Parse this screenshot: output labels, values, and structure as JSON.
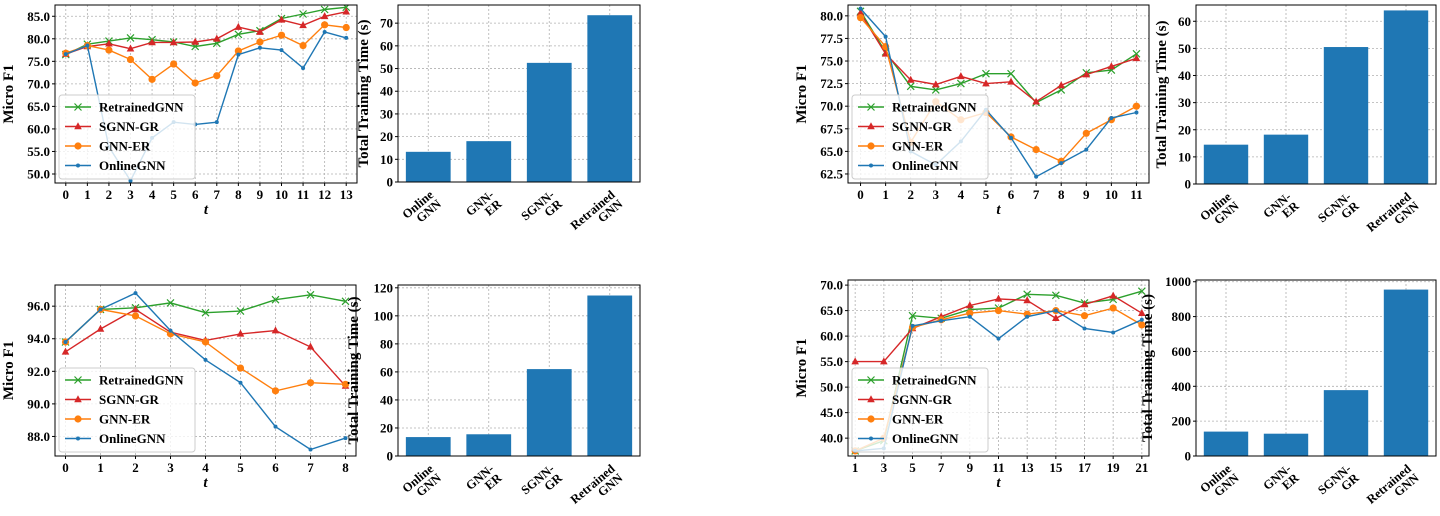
{
  "figure": {
    "legend_location": "lower-left"
  },
  "series_styles": [
    {
      "name": "RetrainedGNN",
      "color": "#2ca02c",
      "marker": "x"
    },
    {
      "name": "SGNN-GR",
      "color": "#d62728",
      "marker": "triangle"
    },
    {
      "name": "GNN-ER",
      "color": "#ff7f0e",
      "marker": "circle"
    },
    {
      "name": "OnlineGNN",
      "color": "#1f77b4",
      "marker": "dot"
    }
  ],
  "bar_color": "#1f77b4",
  "chart_data": [
    {
      "type": "line",
      "id": "panel-a-line",
      "xlabel": "t",
      "ylabel": "Micro F1",
      "xlim": [
        -0.5,
        13.5
      ],
      "ylim": [
        48,
        87.5
      ],
      "xticks": [
        0,
        1,
        2,
        3,
        4,
        5,
        6,
        7,
        8,
        9,
        10,
        11,
        12,
        13
      ],
      "yticks": [
        50.0,
        55.0,
        60.0,
        65.0,
        70.0,
        75.0,
        80.0,
        85.0
      ],
      "ytick_decimals": 1,
      "x": [
        0,
        1,
        2,
        3,
        4,
        5,
        6,
        7,
        8,
        9,
        10,
        11,
        12,
        13
      ],
      "series": [
        {
          "name": "RetrainedGNN",
          "values": [
            76.5,
            78.8,
            79.5,
            80.2,
            79.8,
            79.3,
            78.3,
            79.0,
            81.0,
            81.8,
            84.5,
            85.5,
            86.5,
            87.0
          ]
        },
        {
          "name": "SGNN-GR",
          "values": [
            76.6,
            78.3,
            78.9,
            77.8,
            79.2,
            79.2,
            79.3,
            80.0,
            82.6,
            81.5,
            84.2,
            83.0,
            85.0,
            86.0
          ]
        },
        {
          "name": "GNN-ER",
          "values": [
            76.8,
            78.5,
            77.5,
            75.4,
            71.0,
            74.4,
            70.2,
            71.8,
            77.3,
            79.3,
            80.8,
            78.5,
            83.1,
            82.5
          ]
        },
        {
          "name": "OnlineGNN",
          "values": [
            76.6,
            78.5,
            56.0,
            48.5,
            58.0,
            61.5,
            61.0,
            61.5,
            76.5,
            78.0,
            77.5,
            73.5,
            81.5,
            80.2
          ]
        }
      ]
    },
    {
      "type": "bar",
      "id": "panel-a-bar",
      "ylabel": "Total Training Time (s)",
      "ylim": [
        0,
        78
      ],
      "yticks": [
        0,
        10,
        20,
        30,
        40,
        50,
        60,
        70
      ],
      "categories": [
        [
          "Online",
          "GNN"
        ],
        [
          "GNN-",
          "ER"
        ],
        [
          "SGNN-",
          "GR"
        ],
        [
          "Retrained",
          "GNN"
        ]
      ],
      "values": [
        13.3,
        18.0,
        52.5,
        73.5
      ]
    },
    {
      "type": "line",
      "id": "panel-b-line",
      "xlabel": "t",
      "ylabel": "Micro F1",
      "xlim": [
        -0.5,
        11.5
      ],
      "ylim": [
        61.5,
        81.2
      ],
      "xticks": [
        0,
        1,
        2,
        3,
        4,
        5,
        6,
        7,
        8,
        9,
        10,
        11
      ],
      "yticks": [
        62.5,
        65.0,
        67.5,
        70.0,
        72.5,
        75.0,
        77.5,
        80.0
      ],
      "ytick_decimals": 1,
      "x": [
        0,
        1,
        2,
        3,
        4,
        5,
        6,
        7,
        8,
        9,
        10,
        11
      ],
      "series": [
        {
          "name": "RetrainedGNN",
          "values": [
            80.5,
            76.0,
            72.2,
            71.8,
            72.5,
            73.6,
            73.6,
            70.4,
            71.8,
            73.7,
            74.0,
            75.8
          ]
        },
        {
          "name": "SGNN-GR",
          "values": [
            80.3,
            75.8,
            72.9,
            72.4,
            73.3,
            72.5,
            72.7,
            70.5,
            72.3,
            73.5,
            74.4,
            75.3
          ]
        },
        {
          "name": "GNN-ER",
          "values": [
            79.8,
            76.6,
            66.0,
            70.5,
            68.5,
            69.3,
            66.6,
            65.2,
            63.9,
            67.0,
            68.5,
            70.0
          ]
        },
        {
          "name": "OnlineGNN",
          "values": [
            80.8,
            77.7,
            65.0,
            63.5,
            66.1,
            69.6,
            66.5,
            62.2,
            63.7,
            65.2,
            68.7,
            69.3
          ]
        }
      ]
    },
    {
      "type": "bar",
      "id": "panel-b-bar",
      "ylabel": "Total Training Time (s)",
      "ylim": [
        0,
        66
      ],
      "yticks": [
        0,
        10,
        20,
        30,
        40,
        50,
        60
      ],
      "categories": [
        [
          "Online",
          "GNN"
        ],
        [
          "GNN-",
          "ER"
        ],
        [
          "SGNN-",
          "GR"
        ],
        [
          "Retrained",
          "GNN"
        ]
      ],
      "values": [
        14.5,
        18.2,
        50.5,
        64.0
      ]
    },
    {
      "type": "line",
      "id": "panel-c-line",
      "xlabel": "t",
      "ylabel": "Micro F1",
      "xlim": [
        -0.3,
        8.3
      ],
      "ylim": [
        86.8,
        97.3
      ],
      "xticks": [
        0,
        1,
        2,
        3,
        4,
        5,
        6,
        7,
        8
      ],
      "yticks": [
        88.0,
        90.0,
        92.0,
        94.0,
        96.0
      ],
      "ytick_decimals": 1,
      "x": [
        0,
        1,
        2,
        3,
        4,
        5,
        6,
        7,
        8
      ],
      "series": [
        {
          "name": "RetrainedGNN",
          "values": [
            93.8,
            95.8,
            95.9,
            96.2,
            95.6,
            95.7,
            96.4,
            96.7,
            96.3
          ]
        },
        {
          "name": "SGNN-GR",
          "values": [
            93.2,
            94.6,
            95.8,
            94.4,
            93.9,
            94.3,
            94.5,
            93.5,
            91.1
          ]
        },
        {
          "name": "GNN-ER",
          "values": [
            93.8,
            95.8,
            95.4,
            94.3,
            93.8,
            92.2,
            90.8,
            91.3,
            91.2
          ]
        },
        {
          "name": "OnlineGNN",
          "values": [
            93.8,
            95.8,
            96.8,
            94.5,
            92.7,
            91.3,
            88.6,
            87.2,
            87.9
          ]
        }
      ]
    },
    {
      "type": "bar",
      "id": "panel-c-bar",
      "ylabel": "Total Training Time (s)",
      "ylim": [
        0,
        122
      ],
      "yticks": [
        0,
        20,
        40,
        60,
        80,
        100,
        120
      ],
      "categories": [
        [
          "Online",
          "GNN"
        ],
        [
          "GNN-",
          "ER"
        ],
        [
          "SGNN-",
          "GR"
        ],
        [
          "Retrained",
          "GNN"
        ]
      ],
      "values": [
        13.5,
        15.5,
        62.0,
        114.5
      ]
    },
    {
      "type": "line",
      "id": "panel-d-line",
      "xlabel": "t",
      "ylabel": "Micro F1",
      "xlim": [
        0.5,
        21.5
      ],
      "ylim": [
        36.5,
        71.0
      ],
      "xticks": [
        1,
        3,
        5,
        7,
        9,
        11,
        13,
        15,
        17,
        19,
        21
      ],
      "yticks": [
        40.0,
        45.0,
        50.0,
        55.0,
        60.0,
        65.0,
        70.0
      ],
      "ytick_decimals": 1,
      "x": [
        1,
        3,
        5,
        7,
        9,
        11,
        13,
        15,
        17,
        19,
        21
      ],
      "series": [
        {
          "name": "RetrainedGNN",
          "values": [
            37.5,
            39.5,
            64.0,
            63.5,
            65.2,
            65.5,
            68.2,
            68.0,
            66.5,
            67.2,
            68.8
          ]
        },
        {
          "name": "SGNN-GR",
          "values": [
            55.0,
            55.0,
            61.5,
            63.8,
            66.0,
            67.3,
            67.0,
            63.5,
            66.2,
            67.9,
            64.5
          ]
        },
        {
          "name": "GNN-ER",
          "values": [
            37.5,
            40.0,
            61.7,
            63.2,
            64.5,
            65.0,
            64.3,
            65.0,
            64.0,
            65.5,
            62.2
          ]
        },
        {
          "name": "OnlineGNN",
          "values": [
            37.5,
            38.0,
            62.0,
            63.0,
            63.8,
            59.5,
            63.8,
            65.0,
            61.5,
            60.7,
            63.2
          ]
        }
      ]
    },
    {
      "type": "bar",
      "id": "panel-d-bar",
      "ylabel": "Total Training Time (s)",
      "ylim": [
        0,
        1010
      ],
      "yticks": [
        0,
        200,
        400,
        600,
        800,
        1000
      ],
      "categories": [
        [
          "Online",
          "GNN"
        ],
        [
          "GNN-",
          "ER"
        ],
        [
          "SGNN-",
          "GR"
        ],
        [
          "Retrained",
          "GNN"
        ]
      ],
      "values": [
        140,
        128,
        378,
        955
      ]
    }
  ]
}
